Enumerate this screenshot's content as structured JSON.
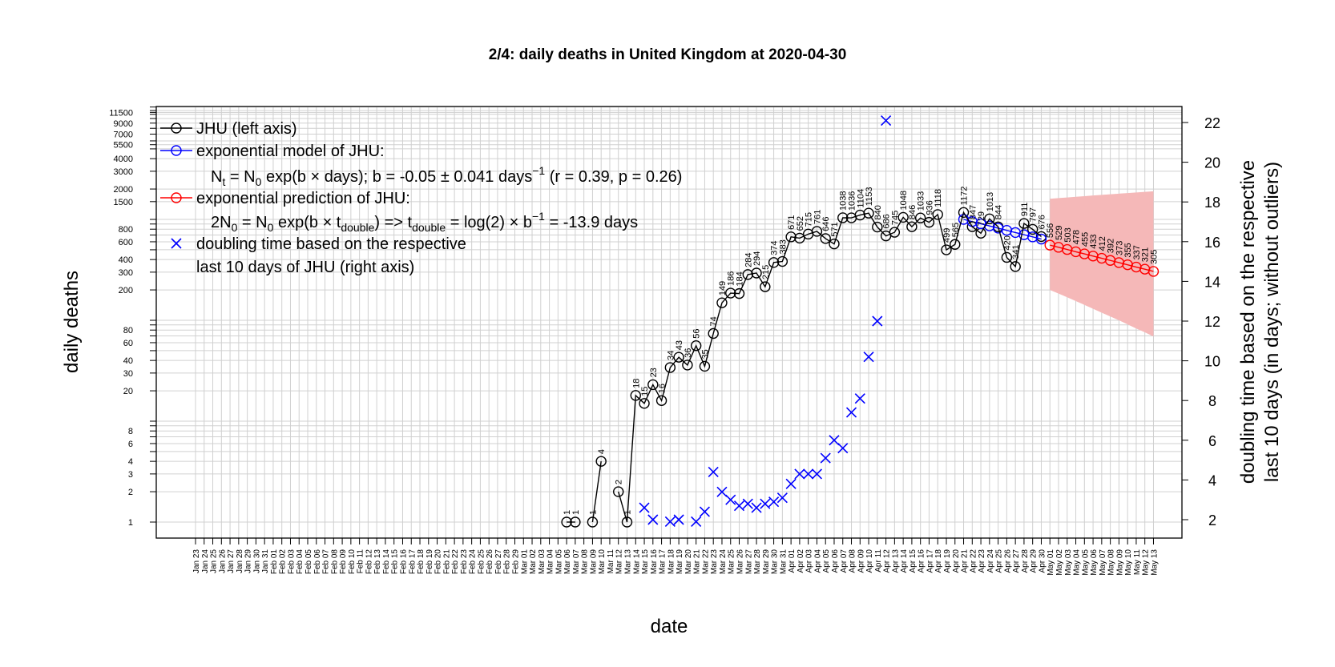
{
  "chart_data": {
    "type": "line",
    "title": "2/4: daily deaths in United Kingdom at 2020-04-30",
    "xlabel": "date",
    "ylabel_left": "daily deaths",
    "ylabel_right_line1": "doubling time based on the respective",
    "ylabel_right_line2": "last 10 days (in days; without outliers)",
    "log_scale_left": true,
    "grid": true,
    "legend_position": "top-left",
    "x_range": [
      "2020-01-23",
      "2020-05-13"
    ],
    "y_left_range": [
      0.8,
      30000
    ],
    "y_right_range": [
      1.5,
      23
    ],
    "left_ticks": [
      1,
      2,
      3,
      4,
      6,
      8,
      20,
      30,
      40,
      60,
      80,
      200,
      300,
      400,
      600,
      800,
      1500,
      2000,
      3000,
      4000,
      5500,
      7000,
      9000,
      11500
    ],
    "left_tick_labels": [
      "1",
      "2",
      "3",
      "4",
      "6",
      "8",
      "20",
      "30",
      "40",
      "60",
      "80",
      "200",
      "300",
      "400",
      "600",
      "800",
      "1500",
      "2000",
      "3000",
      "4000",
      "5500",
      "7000",
      "9000",
      "11500"
    ],
    "left_minor_ticks": [
      5,
      7,
      9,
      10,
      50,
      70,
      90,
      100,
      500,
      700,
      900,
      1000,
      5000,
      6000,
      8000,
      10000,
      11000,
      12000,
      13000,
      14000,
      15000,
      16000
    ],
    "right_ticks": [
      2,
      4,
      6,
      8,
      10,
      12,
      14,
      16,
      18,
      20,
      22
    ],
    "right_tick_labels": [
      "2",
      "4",
      "6",
      "8",
      "10",
      "12",
      "14",
      "16",
      "18",
      "20",
      "22"
    ],
    "x_tick_labels": [
      "Jan 23",
      "Jan 24",
      "Jan 25",
      "Jan 26",
      "Jan 27",
      "Jan 28",
      "Jan 29",
      "Jan 30",
      "Jan 31",
      "Feb 01",
      "Feb 02",
      "Feb 03",
      "Feb 04",
      "Feb 05",
      "Feb 06",
      "Feb 07",
      "Feb 08",
      "Feb 09",
      "Feb 10",
      "Feb 11",
      "Feb 12",
      "Feb 13",
      "Feb 14",
      "Feb 15",
      "Feb 16",
      "Feb 17",
      "Feb 18",
      "Feb 19",
      "Feb 20",
      "Feb 21",
      "Feb 22",
      "Feb 23",
      "Feb 24",
      "Feb 25",
      "Feb 26",
      "Feb 27",
      "Feb 28",
      "Feb 29",
      "Mar 01",
      "Mar 02",
      "Mar 03",
      "Mar 04",
      "Mar 05",
      "Mar 06",
      "Mar 07",
      "Mar 08",
      "Mar 09",
      "Mar 10",
      "Mar 11",
      "Mar 12",
      "Mar 13",
      "Mar 14",
      "Mar 15",
      "Mar 16",
      "Mar 17",
      "Mar 18",
      "Mar 19",
      "Mar 20",
      "Mar 21",
      "Mar 22",
      "Mar 23",
      "Mar 24",
      "Mar 25",
      "Mar 26",
      "Mar 27",
      "Mar 28",
      "Mar 29",
      "Mar 30",
      "Mar 31",
      "Apr 01",
      "Apr 02",
      "Apr 03",
      "Apr 04",
      "Apr 05",
      "Apr 06",
      "Apr 07",
      "Apr 08",
      "Apr 09",
      "Apr 10",
      "Apr 11",
      "Apr 12",
      "Apr 13",
      "Apr 14",
      "Apr 15",
      "Apr 16",
      "Apr 17",
      "Apr 18",
      "Apr 19",
      "Apr 20",
      "Apr 21",
      "Apr 22",
      "Apr 23",
      "Apr 24",
      "Apr 25",
      "Apr 26",
      "Apr 27",
      "Apr 28",
      "Apr 29",
      "Apr 30",
      "May 01",
      "May 02",
      "May 03",
      "May 04",
      "May 05",
      "May 06",
      "May 07",
      "May 08",
      "May 09",
      "May 10",
      "May 11",
      "May 12",
      "May 13"
    ],
    "weekend_labels": [
      "Jan 25",
      "Jan 26",
      "Feb 01",
      "Feb 02",
      "Feb 08",
      "Feb 09",
      "Feb 15",
      "Feb 16",
      "Feb 22",
      "Feb 23",
      "Feb 29",
      "Mar 01",
      "Mar 07",
      "Mar 08",
      "Mar 14",
      "Mar 15",
      "Mar 21",
      "Mar 22",
      "Mar 28",
      "Mar 29",
      "Apr 04",
      "Apr 05",
      "Apr 11",
      "Apr 12",
      "Apr 18",
      "Apr 19",
      "Apr 25",
      "Apr 26",
      "May 02",
      "May 03",
      "May 09",
      "May 10"
    ],
    "colors": {
      "observed": "#000000",
      "model": "#0000ff",
      "prediction": "#ff0000",
      "doubling": "#0000ff",
      "ci_band": "#f5b8b8",
      "weekend": "#cc8800",
      "grid": "#d0d0d0"
    },
    "series": [
      {
        "name": "JHU (left axis)",
        "axis": "left",
        "x": [
          "Mar 06",
          "Mar 07",
          "Mar 09",
          "Mar 10",
          "Mar 12",
          "Mar 13",
          "Mar 14",
          "Mar 15",
          "Mar 16",
          "Mar 17",
          "Mar 18",
          "Mar 19",
          "Mar 20",
          "Mar 21",
          "Mar 22",
          "Mar 23",
          "Mar 24",
          "Mar 25",
          "Mar 26",
          "Mar 27",
          "Mar 28",
          "Mar 29",
          "Mar 30",
          "Mar 31",
          "Apr 01",
          "Apr 02",
          "Apr 03",
          "Apr 04",
          "Apr 05",
          "Apr 06",
          "Apr 07",
          "Apr 08",
          "Apr 09",
          "Apr 10",
          "Apr 11",
          "Apr 12",
          "Apr 13",
          "Apr 14",
          "Apr 15",
          "Apr 16",
          "Apr 17",
          "Apr 18",
          "Apr 19",
          "Apr 20",
          "Apr 21",
          "Apr 22",
          "Apr 23",
          "Apr 24",
          "Apr 25",
          "Apr 26",
          "Apr 27",
          "Apr 28",
          "Apr 29",
          "Apr 30"
        ],
        "values": [
          1,
          1,
          1,
          4,
          2,
          1,
          18,
          15,
          23,
          16,
          34,
          43,
          36,
          56,
          35,
          74,
          149,
          186,
          184,
          284,
          294,
          215,
          374,
          383,
          671,
          652,
          715,
          761,
          646,
          571,
          1038,
          1036,
          1104,
          1153,
          840,
          686,
          745,
          1048,
          846,
          1033,
          936,
          1118,
          499,
          565,
          1172,
          847,
          729,
          1013,
          844,
          420,
          341,
          911,
          797,
          676
        ]
      },
      {
        "name": "exponential model of JHU:",
        "axis": "left",
        "x": [
          "Apr 21",
          "Apr 22",
          "Apr 23",
          "Apr 24",
          "Apr 25",
          "Apr 26",
          "Apr 27",
          "Apr 28",
          "Apr 29",
          "Apr 30"
        ],
        "values": [
          1000,
          951,
          905,
          861,
          819,
          779,
          741,
          705,
          671,
          638
        ]
      },
      {
        "name": "exponential prediction of JHU:",
        "axis": "left",
        "x": [
          "May 01",
          "May 02",
          "May 03",
          "May 04",
          "May 05",
          "May 06",
          "May 07",
          "May 08",
          "May 09",
          "May 10",
          "May 11",
          "May 12",
          "May 13"
        ],
        "values": [
          556,
          529,
          503,
          478,
          455,
          433,
          412,
          392,
          373,
          355,
          337,
          321,
          305
        ],
        "ci_upper": [
          1600,
          1625,
          1650,
          1675,
          1700,
          1725,
          1750,
          1775,
          1800,
          1825,
          1850,
          1875,
          1900
        ],
        "ci_lower": [
          200,
          184,
          169,
          155,
          142,
          130,
          119,
          109,
          100,
          91,
          83,
          76,
          69
        ]
      },
      {
        "name": "doubling time based on the respective",
        "axis": "right",
        "x": [
          "Mar 15",
          "Mar 16",
          "Mar 18",
          "Mar 19",
          "Mar 21",
          "Mar 22",
          "Mar 23",
          "Mar 24",
          "Mar 25",
          "Mar 26",
          "Mar 27",
          "Mar 28",
          "Mar 29",
          "Mar 30",
          "Mar 31",
          "Apr 01",
          "Apr 02",
          "Apr 03",
          "Apr 04",
          "Apr 05",
          "Apr 06",
          "Apr 07",
          "Apr 08",
          "Apr 09",
          "Apr 10",
          "Apr 11",
          "Apr 12"
        ],
        "values": [
          2.6,
          2.0,
          1.9,
          2.0,
          1.9,
          2.4,
          4.4,
          3.4,
          3.0,
          2.7,
          2.8,
          2.6,
          2.8,
          2.9,
          3.1,
          3.8,
          4.3,
          4.3,
          4.3,
          5.1,
          6.0,
          5.6,
          7.4,
          8.1,
          10.2,
          12.0,
          22.1
        ]
      }
    ],
    "point_labels": [
      "1",
      "1",
      "1",
      "4",
      "2",
      "1",
      "18",
      "15",
      "23",
      "16",
      "34",
      "43",
      "36",
      "56",
      "35",
      "74",
      "149",
      "186",
      "184",
      "284",
      "294",
      "215",
      "374",
      "383",
      "671",
      "652",
      "715",
      "761",
      "646",
      "571",
      "1038",
      "1036",
      "1104",
      "1153",
      "840",
      "686",
      "745",
      "1048",
      "846",
      "1033",
      "936",
      "1118",
      "499",
      "565",
      "1172",
      "847",
      "729",
      "1013",
      "844",
      "420",
      "341",
      "911",
      "797",
      "676"
    ],
    "prediction_labels": [
      "556",
      "529",
      "503",
      "478",
      "455",
      "433",
      "412",
      "392",
      "373",
      "355",
      "337",
      "321",
      "305"
    ],
    "legend": {
      "jhu": "JHU (left axis)",
      "model": "exponential model of JHU:",
      "model_formula_pre": "N",
      "model_sub_t": "t",
      "model_formula_mid": " = N",
      "model_sub_0": "0",
      "model_formula_post": " exp(b × days); b = -0.05 ± 0.041 days",
      "model_sup": "−1",
      "model_formula_tail": " (r = 0.39, p = 0.26)",
      "prediction": "exponential prediction of JHU:",
      "pred_formula_a": "2N",
      "pred_sub_0": "0",
      "pred_formula_b": " = N",
      "pred_sub_0b": "0",
      "pred_formula_c": " exp(b × t",
      "pred_sub_double": "double",
      "pred_formula_d": ") => t",
      "pred_sub_double2": "double",
      "pred_formula_e": " = log(2) × b",
      "pred_sup": "−1",
      "pred_formula_f": " = -13.9 days",
      "doubling_line1": "doubling time based on the respective",
      "doubling_line2": "last 10 days of JHU (right axis)"
    }
  }
}
